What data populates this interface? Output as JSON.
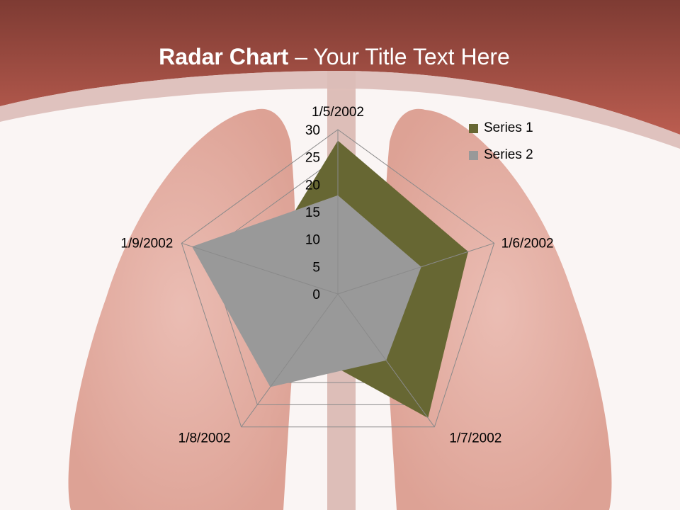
{
  "title": {
    "bold": "Radar Chart",
    "rest": " – Your Title Text Here"
  },
  "chart_data": {
    "type": "radar",
    "categories": [
      "1/5/2002",
      "1/6/2002",
      "1/7/2002",
      "1/8/2002",
      "1/9/2002"
    ],
    "series": [
      {
        "name": "Series 1",
        "values": [
          28,
          25,
          28,
          12,
          15
        ],
        "color": "#676733"
      },
      {
        "name": "Series 2",
        "values": [
          18,
          16,
          15,
          21,
          28
        ],
        "color": "#999999"
      }
    ],
    "rlim": [
      0,
      30
    ],
    "ticks": [
      "0",
      "5",
      "10",
      "15",
      "20",
      "25",
      "30"
    ],
    "grid": true,
    "legend": "top-right"
  }
}
